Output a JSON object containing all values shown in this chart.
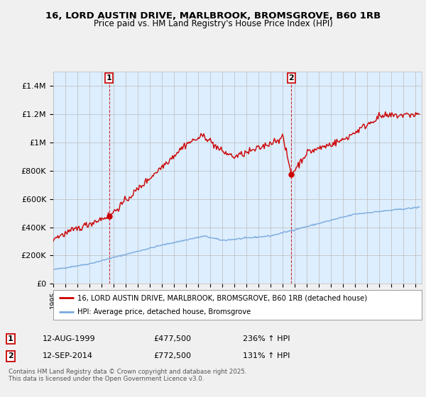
{
  "title": "16, LORD AUSTIN DRIVE, MARLBROOK, BROMSGROVE, B60 1RB",
  "subtitle": "Price paid vs. HM Land Registry's House Price Index (HPI)",
  "legend_line1": "16, LORD AUSTIN DRIVE, MARLBROOK, BROMSGROVE, B60 1RB (detached house)",
  "legend_line2": "HPI: Average price, detached house, Bromsgrove",
  "annotation1_date": "12-AUG-1999",
  "annotation1_price": "£477,500",
  "annotation1_hpi": "236% ↑ HPI",
  "annotation2_date": "12-SEP-2014",
  "annotation2_price": "£772,500",
  "annotation2_hpi": "131% ↑ HPI",
  "footer": "Contains HM Land Registry data © Crown copyright and database right 2025.\nThis data is licensed under the Open Government Licence v3.0.",
  "red_color": "#cc0000",
  "blue_color": "#7aaadd",
  "dashed_color": "#cc0000",
  "background_color": "#f0f0f0",
  "plot_bg_color": "#ddeeff",
  "ylim": [
    0,
    1500000
  ],
  "yticks": [
    0,
    200000,
    400000,
    600000,
    800000,
    1000000,
    1200000,
    1400000
  ],
  "ytick_labels": [
    "£0",
    "£200K",
    "£400K",
    "£600K",
    "£800K",
    "£1M",
    "£1.2M",
    "£1.4M"
  ],
  "sale1_year": 1999.62,
  "sale1_price": 477500,
  "sale2_year": 2014.71,
  "sale2_price": 772500,
  "xmin": 1995.0,
  "xmax": 2025.5
}
